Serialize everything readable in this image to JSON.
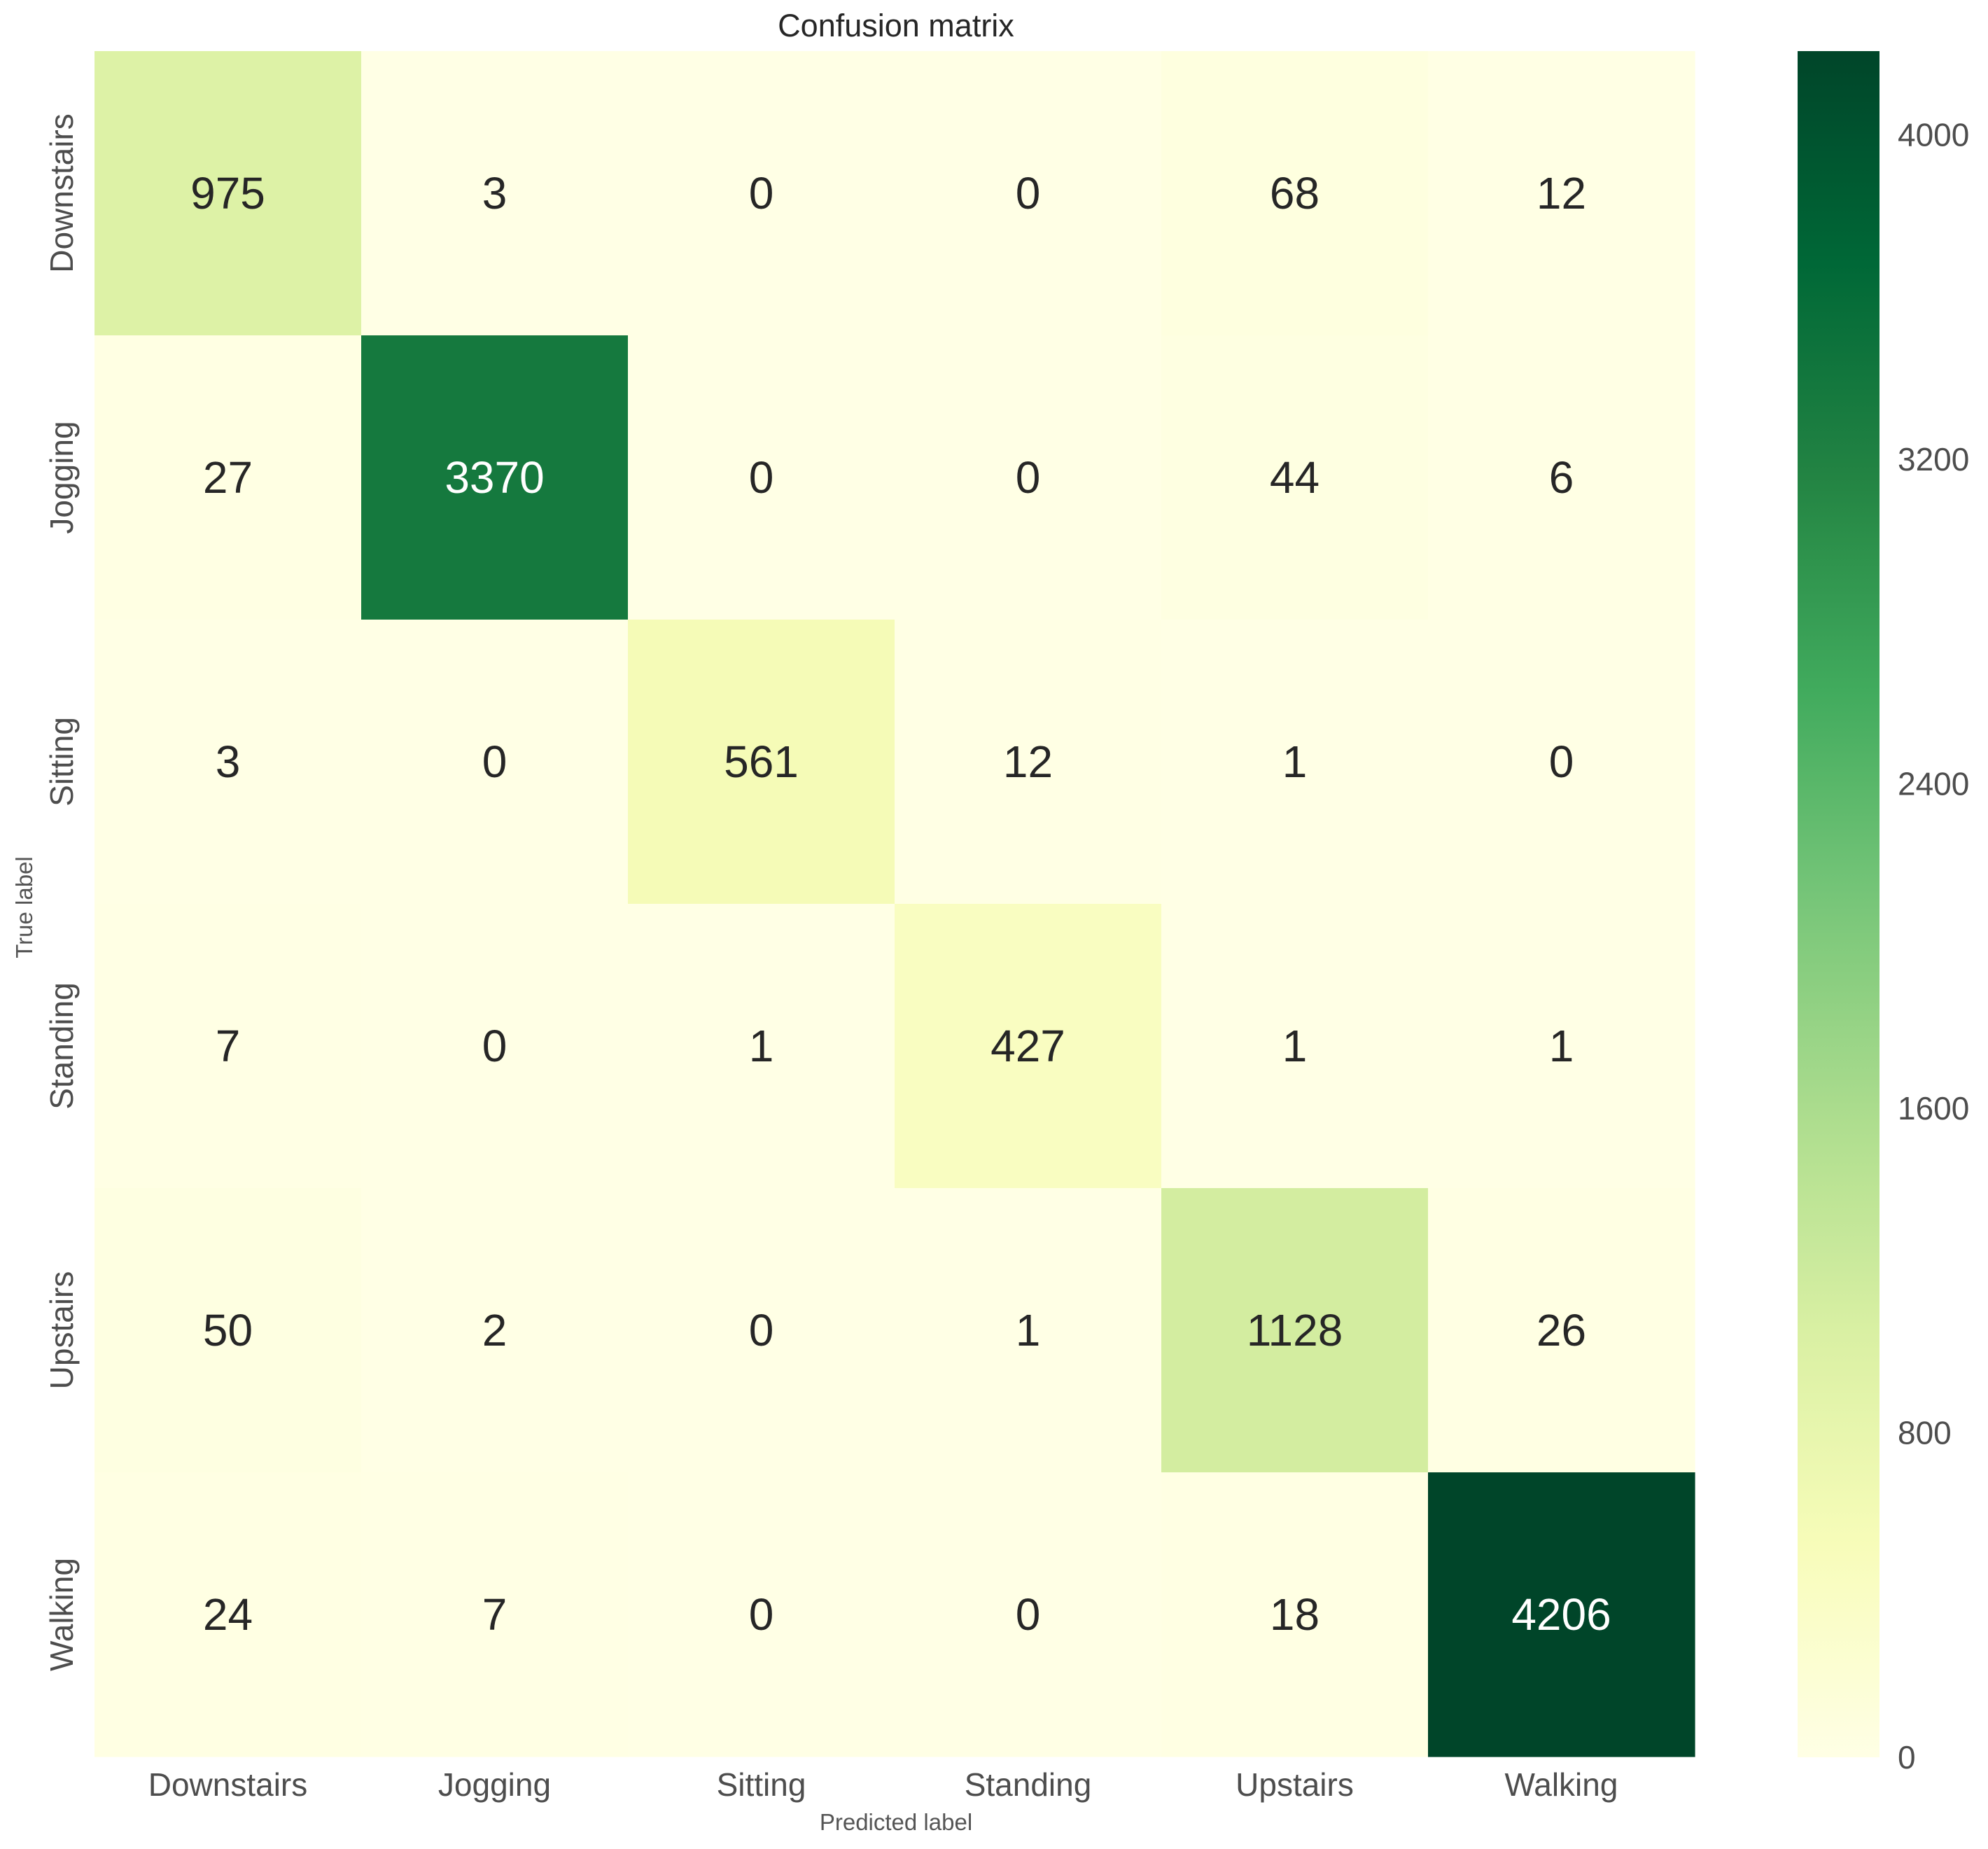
{
  "chart_data": {
    "type": "heatmap",
    "title": "Confusion matrix",
    "xlabel": "Predicted label",
    "ylabel": "True label",
    "x_categories": [
      "Downstairs",
      "Jogging",
      "Sitting",
      "Standing",
      "Upstairs",
      "Walking"
    ],
    "y_categories": [
      "Downstairs",
      "Jogging",
      "Sitting",
      "Standing",
      "Upstairs",
      "Walking"
    ],
    "values": [
      [
        975,
        3,
        0,
        0,
        68,
        12
      ],
      [
        27,
        3370,
        0,
        0,
        44,
        6
      ],
      [
        3,
        0,
        561,
        12,
        1,
        0
      ],
      [
        7,
        0,
        1,
        427,
        1,
        1
      ],
      [
        50,
        2,
        0,
        1,
        1128,
        26
      ],
      [
        24,
        7,
        0,
        0,
        18,
        4206
      ]
    ],
    "colormap": "YlGn",
    "colorbar": {
      "range": [
        0,
        4206
      ],
      "ticks": [
        0,
        800,
        1600,
        2400,
        3200,
        4000
      ],
      "tick_labels": [
        "0",
        "800",
        "1600",
        "2400",
        "3200",
        "4000"
      ]
    },
    "grid": false
  }
}
